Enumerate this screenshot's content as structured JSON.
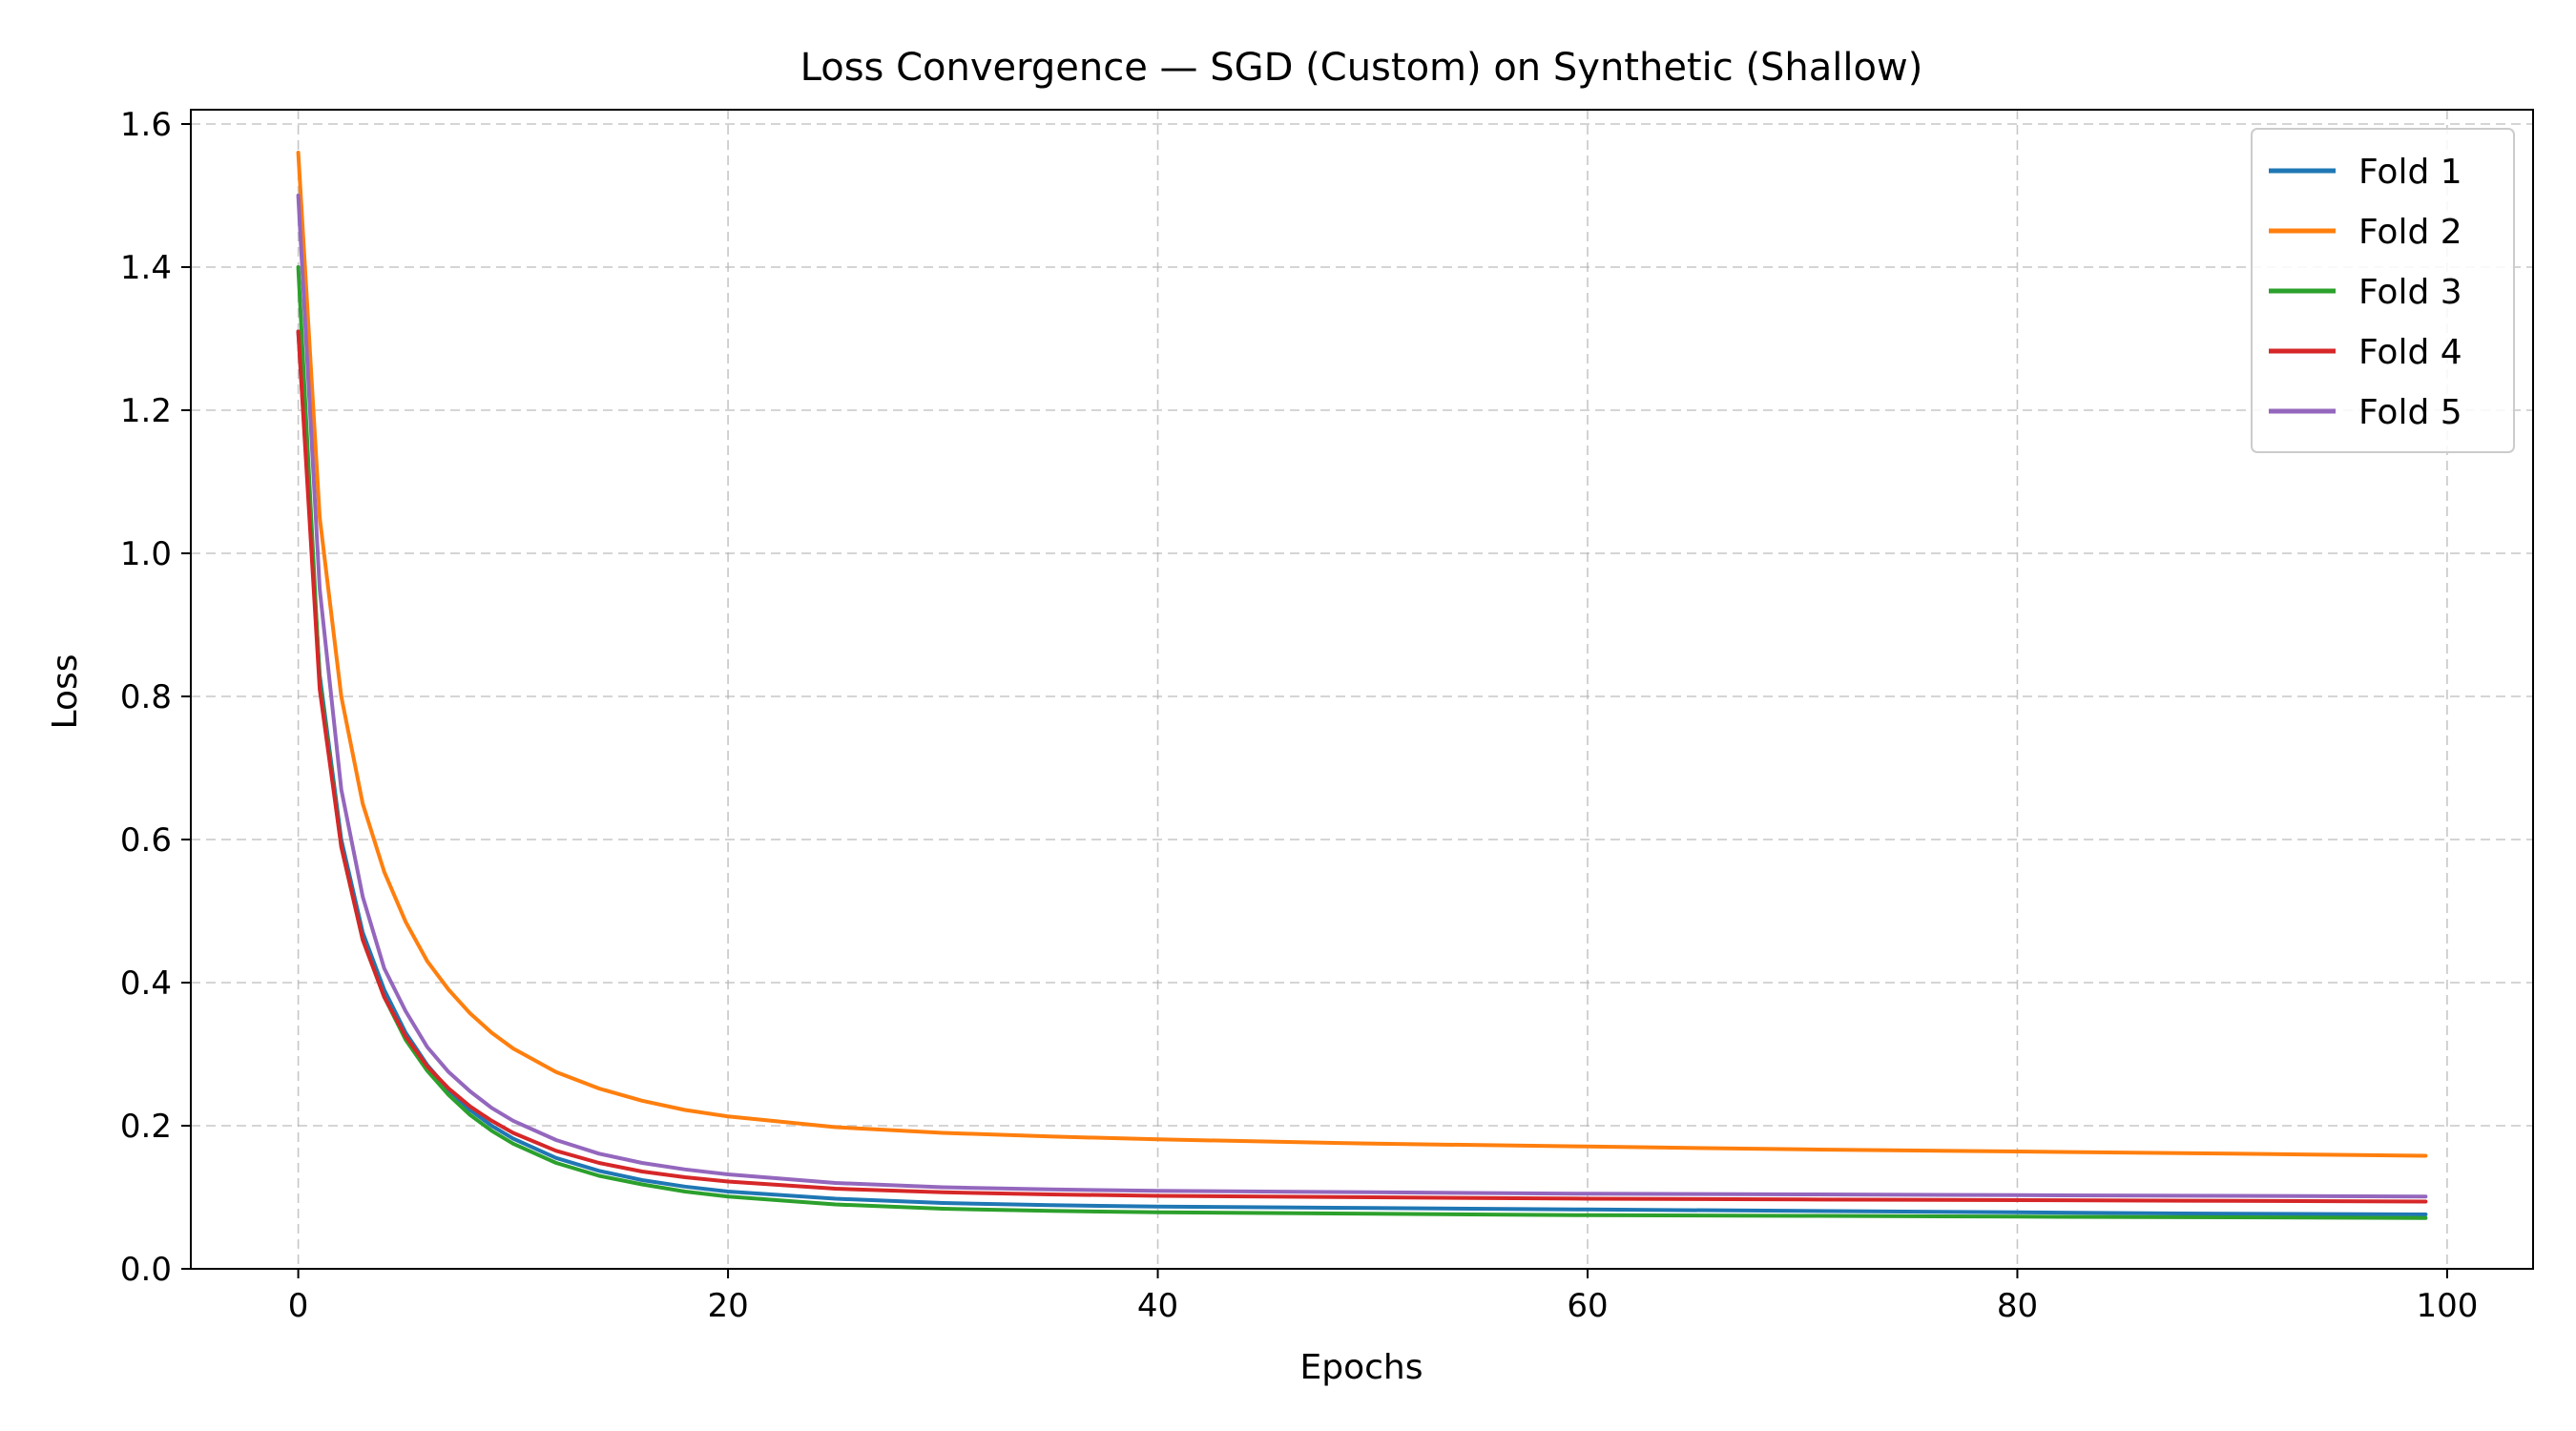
{
  "chart_data": {
    "type": "line",
    "title": "Loss Convergence — SGD (Custom) on Synthetic (Shallow)",
    "xlabel": "Epochs",
    "ylabel": "Loss",
    "xlim": [
      -5,
      104
    ],
    "ylim": [
      0.0,
      1.62
    ],
    "xticks": [
      0,
      20,
      40,
      60,
      80,
      100
    ],
    "xtick_labels": [
      "0",
      "20",
      "40",
      "60",
      "80",
      "100"
    ],
    "yticks": [
      0.0,
      0.2,
      0.4,
      0.6,
      0.8,
      1.0,
      1.2,
      1.4,
      1.6
    ],
    "ytick_labels": [
      "0.0",
      "0.2",
      "0.4",
      "0.6",
      "0.8",
      "1.0",
      "1.2",
      "1.4",
      "1.6"
    ],
    "grid": true,
    "legend_position": "top-right",
    "x": [
      0,
      1,
      2,
      3,
      4,
      5,
      6,
      7,
      8,
      9,
      10,
      12,
      14,
      16,
      18,
      20,
      25,
      30,
      35,
      40,
      50,
      60,
      70,
      80,
      90,
      99
    ],
    "series": [
      {
        "name": "Fold 1",
        "color": "#1f77b4",
        "values": [
          1.31,
          0.83,
          0.6,
          0.47,
          0.39,
          0.33,
          0.285,
          0.25,
          0.222,
          0.2,
          0.182,
          0.155,
          0.137,
          0.124,
          0.115,
          0.108,
          0.098,
          0.092,
          0.089,
          0.087,
          0.085,
          0.083,
          0.081,
          0.079,
          0.077,
          0.076
        ]
      },
      {
        "name": "Fold 2",
        "color": "#ff7f0e",
        "values": [
          1.56,
          1.05,
          0.8,
          0.65,
          0.555,
          0.485,
          0.43,
          0.39,
          0.357,
          0.33,
          0.308,
          0.275,
          0.252,
          0.235,
          0.222,
          0.213,
          0.198,
          0.19,
          0.185,
          0.181,
          0.175,
          0.171,
          0.167,
          0.164,
          0.161,
          0.158
        ]
      },
      {
        "name": "Fold 3",
        "color": "#2ca02c",
        "values": [
          1.4,
          0.82,
          0.59,
          0.46,
          0.38,
          0.32,
          0.277,
          0.243,
          0.215,
          0.193,
          0.175,
          0.148,
          0.13,
          0.118,
          0.108,
          0.101,
          0.09,
          0.084,
          0.081,
          0.079,
          0.077,
          0.075,
          0.074,
          0.073,
          0.072,
          0.071
        ]
      },
      {
        "name": "Fold 4",
        "color": "#d62728",
        "values": [
          1.31,
          0.81,
          0.59,
          0.46,
          0.38,
          0.325,
          0.283,
          0.252,
          0.227,
          0.207,
          0.19,
          0.165,
          0.148,
          0.136,
          0.128,
          0.122,
          0.112,
          0.107,
          0.104,
          0.102,
          0.1,
          0.098,
          0.097,
          0.096,
          0.095,
          0.094
        ]
      },
      {
        "name": "Fold 5",
        "color": "#9467bd",
        "values": [
          1.5,
          0.95,
          0.67,
          0.52,
          0.42,
          0.36,
          0.31,
          0.275,
          0.248,
          0.225,
          0.207,
          0.18,
          0.161,
          0.148,
          0.139,
          0.132,
          0.12,
          0.114,
          0.111,
          0.109,
          0.107,
          0.105,
          0.104,
          0.103,
          0.102,
          0.101
        ]
      }
    ]
  }
}
